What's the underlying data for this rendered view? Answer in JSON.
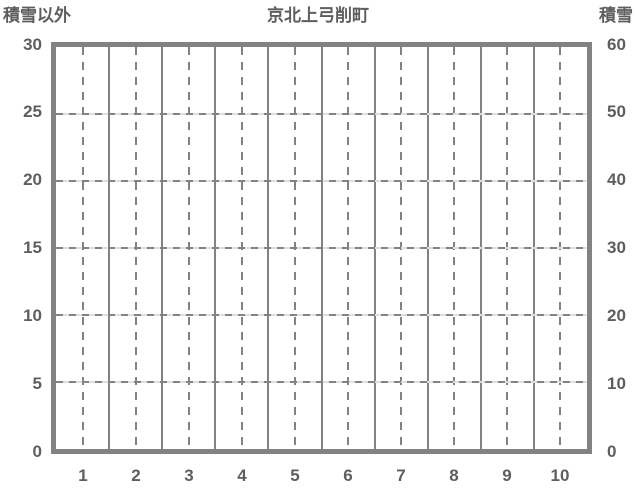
{
  "header": {
    "left_axis_title": "積雪以外",
    "chart_title": "京北上弓削町",
    "right_axis_title": "積雪"
  },
  "chart_data": {
    "type": "line",
    "title": "京北上弓削町",
    "categories": [
      "1",
      "2",
      "3",
      "4",
      "5",
      "6",
      "7",
      "8",
      "9",
      "10"
    ],
    "series": [],
    "left_axis": {
      "title": "積雪以外",
      "ticks": [
        "30",
        "25",
        "20",
        "15",
        "10",
        "5",
        "0"
      ],
      "range": [
        0,
        30
      ]
    },
    "right_axis": {
      "title": "積雪",
      "ticks": [
        "60",
        "50",
        "40",
        "30",
        "20",
        "10",
        "0"
      ],
      "range": [
        0,
        60
      ]
    },
    "grid": {
      "vertical_solid_lines": "category boundaries",
      "vertical_dashed_lines": "category centers",
      "horizontal_dashed_lines": "every left-axis tick (5 units)"
    },
    "colors": {
      "axis_border": "#828282",
      "grid_dark": "#828282",
      "grid_light": "#dedede",
      "text": "#5e5e5e",
      "background": "#ffffff"
    }
  }
}
